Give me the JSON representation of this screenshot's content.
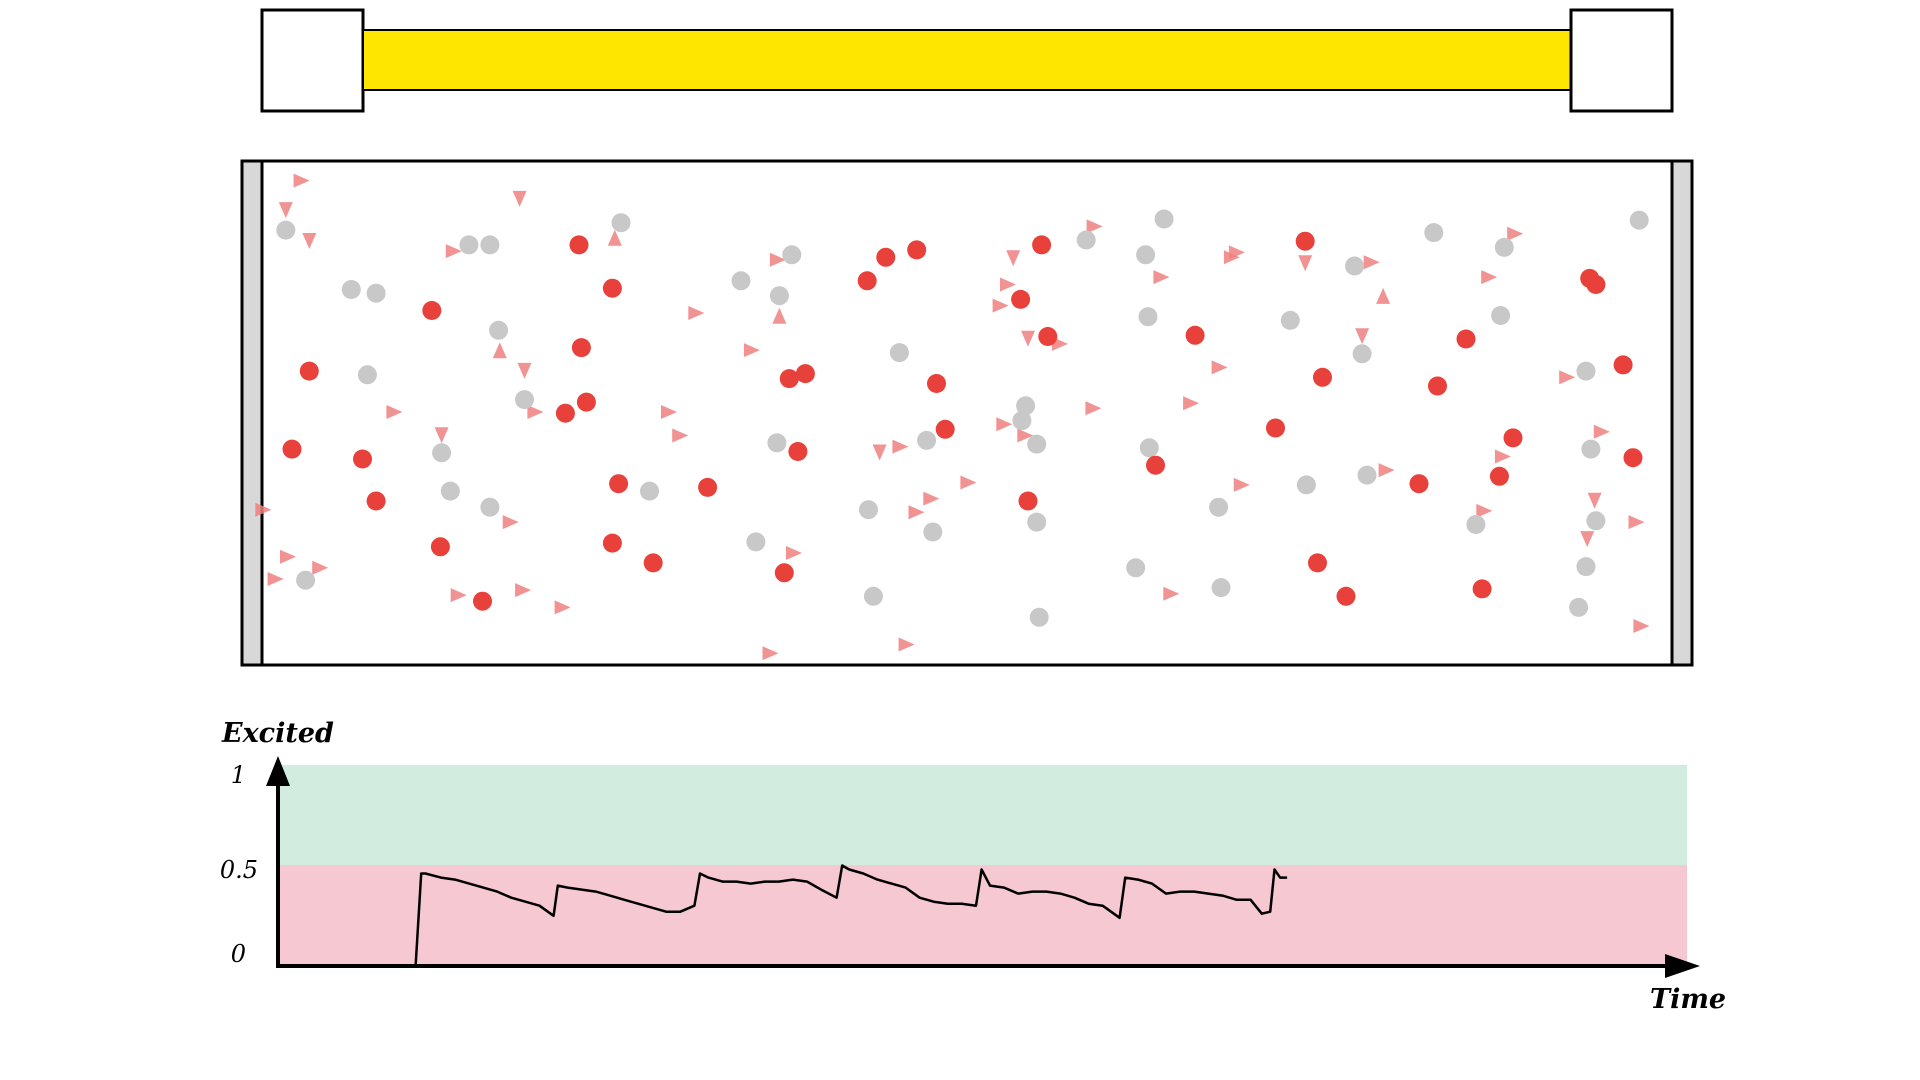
{
  "colors": {
    "bar_fill": "#ffe600",
    "excited": "#e8403a",
    "ground": "#c8c8c8",
    "photon": "#f08080",
    "above_band": "#d2ede0",
    "below_band": "#f5c8d2",
    "wall": "#d8d8d8"
  },
  "pump_bar": {
    "level": 1.0
  },
  "chamber": {
    "excited_atoms": [
      [
        468,
        198
      ],
      [
        349,
        251
      ],
      [
        495,
        233
      ],
      [
        250,
        300
      ],
      [
        470,
        281
      ],
      [
        236,
        363
      ],
      [
        293,
        371
      ],
      [
        474,
        325
      ],
      [
        457,
        334
      ],
      [
        304,
        405
      ],
      [
        356,
        442
      ],
      [
        390,
        486
      ],
      [
        500,
        391
      ],
      [
        572,
        394
      ],
      [
        495,
        439
      ],
      [
        528,
        455
      ],
      [
        716,
        208
      ],
      [
        741,
        202
      ],
      [
        701,
        227
      ],
      [
        638,
        306
      ],
      [
        651,
        302
      ],
      [
        645,
        365
      ],
      [
        634,
        463
      ],
      [
        757,
        310
      ],
      [
        764,
        347
      ],
      [
        842,
        198
      ],
      [
        825,
        242
      ],
      [
        847,
        272
      ],
      [
        831,
        405
      ],
      [
        1055,
        195
      ],
      [
        966,
        271
      ],
      [
        1069,
        305
      ],
      [
        1031,
        346
      ],
      [
        934,
        376
      ],
      [
        1065,
        455
      ],
      [
        1088,
        482
      ],
      [
        1162,
        312
      ],
      [
        1185,
        274
      ],
      [
        1147,
        391
      ],
      [
        1223,
        354
      ],
      [
        1212,
        385
      ],
      [
        1198,
        476
      ],
      [
        1285,
        225
      ],
      [
        1290,
        230
      ],
      [
        1312,
        295
      ],
      [
        1320,
        370
      ]
    ],
    "ground_atoms": [
      [
        231,
        186
      ],
      [
        284,
        234
      ],
      [
        304,
        237
      ],
      [
        297,
        303
      ],
      [
        379,
        198
      ],
      [
        396,
        198
      ],
      [
        403,
        267
      ],
      [
        502,
        180
      ],
      [
        424,
        323
      ],
      [
        357,
        366
      ],
      [
        364,
        397
      ],
      [
        396,
        410
      ],
      [
        525,
        397
      ],
      [
        247,
        469
      ],
      [
        599,
        227
      ],
      [
        640,
        206
      ],
      [
        630,
        239
      ],
      [
        727,
        285
      ],
      [
        628,
        358
      ],
      [
        702,
        412
      ],
      [
        749,
        356
      ],
      [
        754,
        430
      ],
      [
        706,
        482
      ],
      [
        611,
        438
      ],
      [
        829,
        328
      ],
      [
        826,
        340
      ],
      [
        838,
        359
      ],
      [
        838,
        422
      ],
      [
        840,
        499
      ],
      [
        878,
        194
      ],
      [
        941,
        177
      ],
      [
        926,
        206
      ],
      [
        928,
        256
      ],
      [
        929,
        362
      ],
      [
        918,
        459
      ],
      [
        987,
        475
      ],
      [
        985,
        410
      ],
      [
        1043,
        259
      ],
      [
        1056,
        392
      ],
      [
        1095,
        215
      ],
      [
        1101,
        286
      ],
      [
        1105,
        384
      ],
      [
        1159,
        188
      ],
      [
        1216,
        200
      ],
      [
        1213,
        255
      ],
      [
        1193,
        424
      ],
      [
        1282,
        300
      ],
      [
        1286,
        363
      ],
      [
        1290,
        421
      ],
      [
        1282,
        458
      ],
      [
        1276,
        491
      ],
      [
        1325,
        178
      ]
    ],
    "photons": [
      [
        231,
        169,
        90
      ],
      [
        243,
        146,
        0
      ],
      [
        250,
        194,
        90
      ],
      [
        420,
        160,
        90
      ],
      [
        366,
        203,
        0
      ],
      [
        497,
        193,
        -90
      ],
      [
        404,
        284,
        -90
      ],
      [
        424,
        299,
        90
      ],
      [
        432,
        333,
        0
      ],
      [
        318,
        333,
        0
      ],
      [
        357,
        351,
        90
      ],
      [
        412,
        422,
        0
      ],
      [
        370,
        481,
        0
      ],
      [
        422,
        477,
        0
      ],
      [
        454,
        491,
        0
      ],
      [
        212,
        412,
        0
      ],
      [
        232,
        450,
        0
      ],
      [
        222,
        468,
        0
      ],
      [
        258,
        459,
        0
      ],
      [
        562,
        253,
        0
      ],
      [
        607,
        283,
        0
      ],
      [
        628,
        210,
        0
      ],
      [
        630,
        256,
        -90
      ],
      [
        540,
        333,
        0
      ],
      [
        549,
        352,
        0
      ],
      [
        641,
        447,
        0
      ],
      [
        622,
        528,
        0
      ],
      [
        732,
        521,
        0
      ],
      [
        711,
        365,
        90
      ],
      [
        727,
        361,
        0
      ],
      [
        752,
        403,
        0
      ],
      [
        740,
        414,
        0
      ],
      [
        782,
        390,
        0
      ],
      [
        819,
        208,
        90
      ],
      [
        814,
        230,
        0
      ],
      [
        808,
        247,
        0
      ],
      [
        811,
        343,
        0
      ],
      [
        831,
        273,
        90
      ],
      [
        856,
        278,
        0
      ],
      [
        828,
        352,
        0
      ],
      [
        883,
        330,
        0
      ],
      [
        884,
        183,
        0
      ],
      [
        938,
        224,
        0
      ],
      [
        999,
        204,
        0
      ],
      [
        995,
        208,
        0
      ],
      [
        962,
        326,
        0
      ],
      [
        985,
        297,
        0
      ],
      [
        1003,
        392,
        0
      ],
      [
        946,
        480,
        0
      ],
      [
        1055,
        212,
        90
      ],
      [
        1108,
        212,
        0
      ],
      [
        1118,
        240,
        -90
      ],
      [
        1101,
        271,
        90
      ],
      [
        1120,
        380,
        0
      ],
      [
        1203,
        224,
        0
      ],
      [
        1224,
        189,
        0
      ],
      [
        1214,
        369,
        0
      ],
      [
        1199,
        413,
        0
      ],
      [
        1266,
        305,
        0
      ],
      [
        1294,
        349,
        0
      ],
      [
        1289,
        404,
        90
      ],
      [
        1283,
        435,
        90
      ],
      [
        1322,
        422,
        0
      ],
      [
        1326,
        506,
        0
      ]
    ]
  },
  "graph": {
    "ylabel": "Excited",
    "xlabel": "Time",
    "tick_labels": [
      "1",
      "0.5",
      "0"
    ]
  },
  "chart_data": {
    "type": "line",
    "title": "",
    "xlabel": "Time",
    "ylabel": "Excited",
    "ylim": [
      0,
      1
    ],
    "xlim": [
      0,
      1
    ],
    "yticks": [
      0,
      0.5,
      1
    ],
    "bands": [
      {
        "from": 0,
        "to": 0.5,
        "color": "#f5c8d2"
      },
      {
        "from": 0.5,
        "to": 1,
        "color": "#d2ede0"
      }
    ],
    "series": [
      {
        "values": [
          [
            0.097,
            0.0
          ],
          [
            0.101,
            0.46
          ],
          [
            0.104,
            0.46
          ],
          [
            0.115,
            0.44
          ],
          [
            0.125,
            0.43
          ],
          [
            0.135,
            0.41
          ],
          [
            0.145,
            0.39
          ],
          [
            0.155,
            0.37
          ],
          [
            0.165,
            0.34
          ],
          [
            0.175,
            0.32
          ],
          [
            0.185,
            0.3
          ],
          [
            0.195,
            0.25
          ],
          [
            0.198,
            0.4
          ],
          [
            0.205,
            0.39
          ],
          [
            0.215,
            0.38
          ],
          [
            0.225,
            0.37
          ],
          [
            0.235,
            0.35
          ],
          [
            0.245,
            0.33
          ],
          [
            0.255,
            0.31
          ],
          [
            0.265,
            0.29
          ],
          [
            0.275,
            0.27
          ],
          [
            0.285,
            0.27
          ],
          [
            0.295,
            0.3
          ],
          [
            0.299,
            0.46
          ],
          [
            0.305,
            0.44
          ],
          [
            0.315,
            0.42
          ],
          [
            0.325,
            0.42
          ],
          [
            0.335,
            0.41
          ],
          [
            0.345,
            0.42
          ],
          [
            0.355,
            0.42
          ],
          [
            0.365,
            0.43
          ],
          [
            0.375,
            0.42
          ],
          [
            0.385,
            0.38
          ],
          [
            0.396,
            0.34
          ],
          [
            0.4,
            0.5
          ],
          [
            0.405,
            0.48
          ],
          [
            0.415,
            0.46
          ],
          [
            0.425,
            0.43
          ],
          [
            0.435,
            0.41
          ],
          [
            0.445,
            0.39
          ],
          [
            0.455,
            0.34
          ],
          [
            0.465,
            0.32
          ],
          [
            0.475,
            0.31
          ],
          [
            0.485,
            0.31
          ],
          [
            0.495,
            0.3
          ],
          [
            0.499,
            0.48
          ],
          [
            0.505,
            0.4
          ],
          [
            0.515,
            0.39
          ],
          [
            0.525,
            0.36
          ],
          [
            0.535,
            0.37
          ],
          [
            0.545,
            0.37
          ],
          [
            0.555,
            0.36
          ],
          [
            0.565,
            0.34
          ],
          [
            0.575,
            0.31
          ],
          [
            0.585,
            0.3
          ],
          [
            0.597,
            0.24
          ],
          [
            0.601,
            0.44
          ],
          [
            0.61,
            0.43
          ],
          [
            0.62,
            0.41
          ],
          [
            0.63,
            0.36
          ],
          [
            0.64,
            0.37
          ],
          [
            0.65,
            0.37
          ],
          [
            0.66,
            0.36
          ],
          [
            0.67,
            0.35
          ],
          [
            0.68,
            0.33
          ],
          [
            0.69,
            0.33
          ],
          [
            0.698,
            0.26
          ],
          [
            0.704,
            0.27
          ],
          [
            0.707,
            0.48
          ],
          [
            0.711,
            0.44
          ],
          [
            0.716,
            0.44
          ]
        ]
      }
    ]
  }
}
